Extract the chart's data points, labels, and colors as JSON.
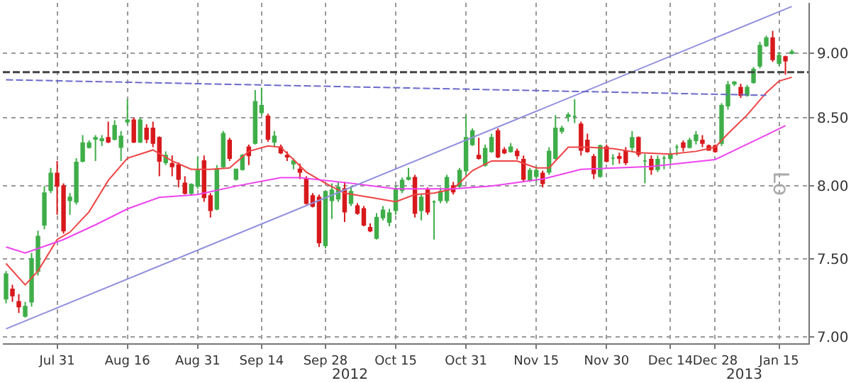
{
  "chart_data": {
    "type": "candlestick",
    "categories": [
      null,
      null,
      null,
      null,
      null,
      null,
      null,
      null,
      "Jul 31",
      null,
      null,
      null,
      null,
      null,
      null,
      null,
      null,
      null,
      null,
      "Aug 16",
      null,
      null,
      null,
      null,
      null,
      null,
      null,
      null,
      null,
      null,
      "Aug 31",
      null,
      null,
      null,
      null,
      null,
      null,
      null,
      null,
      null,
      "Sep 14",
      null,
      null,
      null,
      null,
      null,
      null,
      null,
      null,
      null,
      "Sep 28",
      null,
      null,
      null,
      null,
      null,
      null,
      null,
      null,
      null,
      null,
      "Oct 15",
      null,
      null,
      null,
      null,
      null,
      null,
      null,
      null,
      null,
      null,
      "Oct 31",
      null,
      null,
      null,
      null,
      null,
      null,
      null,
      null,
      null,
      null,
      "Nov 15",
      null,
      null,
      null,
      null,
      null,
      null,
      null,
      null,
      null,
      null,
      "Nov 30",
      null,
      null,
      null,
      null,
      null,
      null,
      null,
      null,
      null,
      "Dec 14",
      null,
      null,
      null,
      null,
      null,
      null,
      "Dec 28",
      null,
      null,
      null,
      null,
      null,
      null,
      null,
      null,
      null,
      "Jan 15",
      null,
      null
    ],
    "ohlc": [
      [
        7.24,
        7.42,
        7.21,
        7.4
      ],
      [
        7.3,
        7.33,
        7.22,
        7.26
      ],
      [
        7.22,
        7.27,
        7.15,
        7.19
      ],
      [
        7.13,
        7.22,
        7.12,
        7.19
      ],
      [
        7.22,
        7.54,
        7.19,
        7.5
      ],
      [
        7.42,
        7.69,
        7.39,
        7.65
      ],
      [
        7.73,
        8.0,
        7.7,
        7.95
      ],
      [
        7.97,
        8.13,
        7.95,
        8.09
      ],
      [
        8.09,
        8.18,
        7.8,
        8.0
      ],
      [
        8.0,
        8.02,
        7.67,
        7.69
      ],
      [
        7.9,
        7.95,
        7.8,
        7.92
      ],
      [
        7.89,
        8.2,
        7.87,
        8.17
      ],
      [
        8.18,
        8.37,
        8.17,
        8.31
      ],
      [
        8.28,
        8.33,
        8.27,
        8.31
      ],
      [
        8.34,
        8.37,
        8.18,
        8.35
      ],
      [
        8.33,
        8.37,
        8.29,
        8.34
      ],
      [
        8.35,
        8.47,
        8.31,
        8.32
      ],
      [
        8.34,
        8.48,
        8.33,
        8.44
      ],
      [
        8.28,
        8.4,
        8.18,
        8.36
      ],
      [
        8.47,
        8.64,
        8.45,
        8.48
      ],
      [
        8.48,
        8.5,
        8.31,
        8.32
      ],
      [
        8.32,
        8.5,
        8.31,
        8.48
      ],
      [
        8.42,
        8.45,
        8.31,
        8.34
      ],
      [
        8.42,
        8.47,
        8.28,
        8.31
      ],
      [
        8.35,
        8.36,
        8.07,
        8.18
      ],
      [
        8.17,
        8.25,
        8.15,
        8.22
      ],
      [
        8.16,
        8.22,
        8.07,
        8.14
      ],
      [
        8.15,
        8.17,
        7.99,
        8.05
      ],
      [
        8.02,
        8.07,
        7.94,
        7.95
      ],
      [
        7.95,
        8.02,
        7.94,
        8.01
      ],
      [
        8.0,
        8.21,
        7.98,
        8.11
      ],
      [
        8.18,
        8.22,
        7.89,
        7.92
      ],
      [
        7.93,
        7.95,
        7.78,
        7.83
      ],
      [
        7.84,
        8.15,
        7.83,
        8.12
      ],
      [
        8.14,
        8.4,
        8.13,
        8.38
      ],
      [
        8.33,
        8.35,
        8.18,
        8.2
      ],
      [
        8.05,
        8.12,
        8.04,
        8.12
      ],
      [
        8.12,
        8.23,
        8.11,
        8.22
      ],
      [
        8.28,
        8.3,
        8.15,
        8.22
      ],
      [
        8.31,
        8.71,
        8.3,
        8.62
      ],
      [
        8.54,
        8.73,
        8.52,
        8.59
      ],
      [
        8.51,
        8.53,
        8.32,
        8.34
      ],
      [
        8.32,
        8.4,
        8.28,
        8.36
      ],
      [
        8.28,
        8.3,
        8.23,
        8.24
      ],
      [
        8.22,
        8.25,
        8.18,
        8.21
      ],
      [
        8.16,
        8.2,
        8.12,
        8.18
      ],
      [
        8.12,
        8.16,
        8.05,
        8.1
      ],
      [
        8.05,
        8.07,
        7.87,
        7.88
      ],
      [
        7.93,
        7.95,
        7.85,
        7.86
      ],
      [
        7.92,
        7.94,
        7.58,
        7.61
      ],
      [
        7.59,
        7.96,
        7.57,
        7.96
      ],
      [
        7.9,
        8.02,
        7.77,
        7.97
      ],
      [
        7.91,
        8.03,
        7.89,
        7.99
      ],
      [
        7.98,
        8.03,
        7.75,
        7.82
      ],
      [
        7.88,
        8.0,
        7.86,
        7.96
      ],
      [
        7.86,
        7.88,
        7.8,
        7.81
      ],
      [
        7.84,
        7.86,
        7.72,
        7.73
      ],
      [
        7.71,
        7.74,
        7.68,
        7.69
      ],
      [
        7.64,
        7.81,
        7.63,
        7.78
      ],
      [
        7.78,
        7.86,
        7.76,
        7.83
      ],
      [
        7.75,
        7.84,
        7.72,
        7.81
      ],
      [
        7.83,
        8.0,
        7.8,
        7.98
      ],
      [
        7.97,
        8.06,
        7.95,
        8.04
      ],
      [
        8.05,
        8.13,
        8.04,
        8.06
      ],
      [
        8.06,
        8.08,
        7.78,
        7.81
      ],
      [
        7.83,
        7.94,
        7.76,
        7.92
      ],
      [
        7.97,
        7.99,
        7.8,
        7.82
      ],
      [
        7.89,
        7.9,
        7.63,
        7.89
      ],
      [
        7.9,
        7.99,
        7.88,
        7.96
      ],
      [
        7.9,
        8.08,
        7.88,
        8.06
      ],
      [
        8.0,
        8.03,
        7.94,
        7.96
      ],
      [
        8.0,
        8.13,
        7.98,
        8.11
      ],
      [
        8.11,
        8.52,
        8.08,
        8.35
      ],
      [
        8.3,
        8.42,
        8.29,
        8.4
      ],
      [
        8.22,
        8.35,
        8.19,
        8.2
      ],
      [
        8.15,
        8.3,
        8.14,
        8.27
      ],
      [
        8.25,
        8.38,
        8.24,
        8.35
      ],
      [
        8.4,
        8.42,
        8.2,
        8.21
      ],
      [
        8.26,
        8.28,
        8.23,
        8.24
      ],
      [
        8.25,
        8.31,
        8.24,
        8.28
      ],
      [
        8.25,
        8.27,
        8.19,
        8.22
      ],
      [
        8.19,
        8.22,
        8.03,
        8.05
      ],
      [
        8.04,
        8.13,
        8.03,
        8.11
      ],
      [
        8.07,
        8.14,
        8.03,
        8.11
      ],
      [
        8.09,
        8.11,
        7.99,
        8.02
      ],
      [
        8.1,
        8.28,
        8.08,
        8.25
      ],
      [
        8.2,
        8.52,
        8.19,
        8.42
      ],
      [
        8.4,
        8.44,
        8.38,
        8.42
      ],
      [
        8.51,
        8.54,
        8.47,
        8.52
      ],
      [
        8.51,
        8.64,
        8.46,
        8.51
      ],
      [
        8.45,
        8.47,
        8.22,
        8.26
      ],
      [
        8.33,
        8.38,
        8.24,
        8.25
      ],
      [
        8.21,
        8.23,
        8.05,
        8.09
      ],
      [
        8.07,
        8.3,
        8.06,
        8.29
      ],
      [
        8.28,
        8.3,
        8.17,
        8.18
      ],
      [
        8.2,
        8.23,
        8.15,
        8.2
      ],
      [
        8.21,
        8.24,
        8.16,
        8.2
      ],
      [
        8.25,
        8.28,
        8.15,
        8.17
      ],
      [
        8.28,
        8.4,
        8.25,
        8.35
      ],
      [
        8.35,
        8.36,
        8.21,
        8.23
      ],
      [
        8.18,
        8.23,
        8.02,
        8.18
      ],
      [
        8.19,
        8.22,
        8.08,
        8.12
      ],
      [
        8.12,
        8.22,
        8.1,
        8.19
      ],
      [
        8.2,
        8.22,
        8.12,
        8.2
      ],
      [
        8.2,
        8.25,
        8.16,
        8.23
      ],
      [
        8.28,
        8.3,
        8.22,
        8.28
      ],
      [
        8.31,
        8.33,
        8.25,
        8.28
      ],
      [
        8.28,
        8.35,
        8.27,
        8.33
      ],
      [
        8.33,
        8.4,
        8.3,
        8.37
      ],
      [
        8.33,
        8.37,
        8.28,
        8.31
      ],
      [
        8.29,
        8.3,
        8.26,
        8.26
      ],
      [
        8.29,
        8.3,
        8.24,
        8.25
      ],
      [
        8.31,
        8.61,
        8.29,
        8.59
      ],
      [
        8.59,
        8.78,
        8.56,
        8.75
      ],
      [
        8.76,
        8.78,
        8.74,
        8.77
      ],
      [
        8.73,
        8.76,
        8.65,
        8.67
      ],
      [
        8.67,
        8.75,
        8.66,
        8.73
      ],
      [
        8.77,
        8.89,
        8.76,
        8.87
      ],
      [
        8.9,
        9.09,
        8.88,
        9.06
      ],
      [
        9.06,
        9.14,
        9.05,
        9.12
      ],
      [
        9.12,
        9.18,
        8.93,
        8.95
      ],
      [
        8.92,
        9.01,
        8.9,
        8.98
      ],
      [
        8.97,
        8.98,
        8.83,
        8.94
      ],
      [
        9.0,
        9.03,
        8.99,
        9.01
      ]
    ],
    "colors": [
      "#3fae49",
      "#d7191c",
      "#d7191c",
      "#3fae49",
      "#3fae49",
      "#3fae49",
      "#3fae49",
      "#3fae49",
      "#d7191c",
      "#d7191c",
      "#3fae49",
      "#3fae49",
      "#3fae49",
      "#3fae49",
      "#3fae49",
      "#3fae49",
      "#d7191c",
      "#3fae49",
      "#3fae49",
      "#3fae49",
      "#d7191c",
      "#3fae49",
      "#d7191c",
      "#d7191c",
      "#d7191c",
      "#3fae49",
      "#d7191c",
      "#d7191c",
      "#d7191c",
      "#3fae49",
      "#3fae49",
      "#d7191c",
      "#d7191c",
      "#3fae49",
      "#3fae49",
      "#d7191c",
      "#3fae49",
      "#3fae49",
      "#d7191c",
      "#3fae49",
      "#3fae49",
      "#d7191c",
      "#3fae49",
      "#d7191c",
      "#d7191c",
      "#3fae49",
      "#d7191c",
      "#d7191c",
      "#d7191c",
      "#d7191c",
      "#3fae49",
      "#3fae49",
      "#3fae49",
      "#d7191c",
      "#3fae49",
      "#d7191c",
      "#d7191c",
      "#d7191c",
      "#3fae49",
      "#3fae49",
      "#3fae49",
      "#3fae49",
      "#3fae49",
      "#3fae49",
      "#d7191c",
      "#3fae49",
      "#d7191c",
      "#3fae49",
      "#3fae49",
      "#3fae49",
      "#d7191c",
      "#3fae49",
      "#3fae49",
      "#3fae49",
      "#d7191c",
      "#3fae49",
      "#3fae49",
      "#d7191c",
      "#d7191c",
      "#3fae49",
      "#d7191c",
      "#d7191c",
      "#3fae49",
      "#3fae49",
      "#d7191c",
      "#3fae49",
      "#3fae49",
      "#3fae49",
      "#3fae49",
      "#3fae49",
      "#d7191c",
      "#d7191c",
      "#d7191c",
      "#3fae49",
      "#d7191c",
      "#3fae49",
      "#d7191c",
      "#d7191c",
      "#3fae49",
      "#d7191c",
      "#3fae49",
      "#d7191c",
      "#3fae49",
      "#3fae49",
      "#3fae49",
      "#3fae49",
      "#d7191c",
      "#3fae49",
      "#3fae49",
      "#d7191c",
      "#d7191c",
      "#d7191c",
      "#3fae49",
      "#3fae49",
      "#3fae49",
      "#d7191c",
      "#3fae49",
      "#3fae49",
      "#3fae49",
      "#3fae49",
      "#d7191c",
      "#3fae49",
      "#d7191c",
      "#3fae49"
    ],
    "series": [
      {
        "type": "line",
        "color": "#ee4444",
        "values": [
          7.47,
          null,
          null,
          7.33,
          null,
          7.42,
          null,
          null,
          7.63,
          null,
          7.68,
          null,
          null,
          7.82,
          null,
          null,
          8.04,
          null,
          null,
          8.2,
          null,
          null,
          null,
          8.26,
          null,
          null,
          8.18,
          null,
          null,
          8.12,
          null,
          null,
          8.12,
          null,
          null,
          8.13,
          null,
          null,
          8.25,
          null,
          null,
          8.29,
          null,
          8.28,
          null,
          null,
          null,
          8.1,
          null,
          null,
          8.02,
          null,
          null,
          7.95,
          null,
          null,
          null,
          7.92,
          null,
          null,
          null,
          7.89,
          null,
          null,
          7.94,
          null,
          null,
          7.95,
          null,
          null,
          7.98,
          null,
          null,
          8.11,
          null,
          null,
          8.18,
          null,
          null,
          null,
          8.18,
          null,
          null,
          8.13,
          null,
          8.13,
          null,
          null,
          8.28,
          null,
          null,
          8.28,
          null,
          null,
          null,
          8.27,
          null,
          null,
          null,
          8.24,
          null,
          null,
          null,
          null,
          8.23,
          null,
          null,
          null,
          8.25,
          null,
          null,
          8.28,
          null,
          8.38,
          null,
          null,
          8.52,
          null,
          null,
          8.69,
          null,
          8.78,
          null,
          8.81
        ]
      },
      {
        "type": "line",
        "color": "#ee44ee",
        "values": [
          7.58,
          null,
          null,
          7.54,
          null,
          null,
          null,
          null,
          null,
          7.63,
          null,
          null,
          null,
          null,
          7.73,
          null,
          null,
          null,
          null,
          7.84,
          null,
          null,
          null,
          null,
          7.92,
          null,
          null,
          null,
          null,
          null,
          7.94,
          null,
          null,
          null,
          null,
          null,
          8.0,
          null,
          null,
          null,
          null,
          null,
          null,
          8.06,
          null,
          null,
          8.06,
          null,
          null,
          null,
          null,
          null,
          null,
          null,
          8.02,
          null,
          null,
          null,
          null,
          null,
          null,
          7.98,
          null,
          null,
          null,
          null,
          null,
          null,
          null,
          null,
          7.98,
          null,
          null,
          null,
          null,
          null,
          8.0,
          null,
          null,
          null,
          null,
          null,
          null,
          null,
          8.05,
          null,
          null,
          null,
          null,
          null,
          8.12,
          null,
          null,
          null,
          null,
          null,
          null,
          null,
          null,
          null,
          null,
          8.14,
          null,
          null,
          null,
          null,
          null,
          null,
          null,
          null,
          null,
          8.19,
          null,
          null,
          null,
          8.28,
          null,
          null,
          null,
          8.37,
          null,
          null,
          8.44,
          null
        ]
      },
      {
        "type": "line",
        "color": "#9090dd",
        "values": [
          7.05,
          null,
          null,
          null,
          null,
          null,
          null,
          null,
          null,
          null,
          null,
          null,
          null,
          null,
          null,
          null,
          null,
          null,
          null,
          null,
          null,
          null,
          null,
          null,
          null,
          null,
          null,
          null,
          null,
          null,
          null,
          null,
          null,
          null,
          null,
          null,
          null,
          null,
          null,
          null,
          null,
          null,
          null,
          null,
          null,
          null,
          null,
          null,
          null,
          null,
          null,
          null,
          null,
          null,
          null,
          null,
          null,
          null,
          null,
          null,
          null,
          null,
          null,
          null,
          null,
          null,
          null,
          null,
          null,
          null,
          null,
          null,
          null,
          null,
          null,
          null,
          null,
          null,
          null,
          null,
          null,
          null,
          null,
          null,
          null,
          null,
          null,
          null,
          null,
          null,
          null,
          null,
          null,
          null,
          null,
          null,
          null,
          null,
          null,
          null,
          null,
          null,
          null,
          null,
          null,
          null,
          null,
          null,
          null,
          null,
          null,
          null,
          null,
          null,
          null,
          null,
          null,
          null,
          null,
          null,
          null,
          null,
          null,
          9.38
        ]
      },
      {
        "type": "line",
        "color": "#6a6acc",
        "line_style": "dashed",
        "values": [
          8.79,
          null,
          null,
          null,
          null,
          null,
          null,
          null,
          null,
          null,
          null,
          null,
          null,
          null,
          null,
          null,
          null,
          null,
          null,
          null,
          null,
          null,
          null,
          null,
          null,
          null,
          null,
          null,
          null,
          null,
          null,
          null,
          null,
          null,
          null,
          null,
          null,
          null,
          null,
          null,
          null,
          null,
          null,
          null,
          null,
          null,
          null,
          null,
          null,
          null,
          null,
          null,
          null,
          null,
          null,
          null,
          null,
          null,
          null,
          null,
          null,
          null,
          null,
          null,
          null,
          null,
          null,
          null,
          null,
          null,
          null,
          null,
          null,
          null,
          null,
          null,
          null,
          null,
          null,
          null,
          null,
          null,
          null,
          null,
          null,
          null,
          null,
          null,
          null,
          null,
          null,
          null,
          null,
          null,
          null,
          null,
          null,
          null,
          null,
          null,
          null,
          null,
          null,
          null,
          null,
          null,
          null,
          null,
          null,
          null,
          null,
          null,
          null,
          null,
          null,
          null,
          null,
          null,
          null,
          8.67,
          null,
          null,
          null,
          null
        ]
      }
    ],
    "ref_lines": [
      {
        "axis": "y",
        "value": 8.85,
        "color": "#444444",
        "line_style": "dashed"
      }
    ],
    "ylim": [
      6.96,
      9.41
    ],
    "yticks": [
      {
        "value": 7,
        "label": "7.00"
      },
      {
        "value": 7.5,
        "label": "7.50"
      },
      {
        "value": 8,
        "label": "8.00"
      },
      {
        "value": 8.5,
        "label": "8.50"
      },
      {
        "value": 9,
        "label": "9.00"
      }
    ],
    "log": true,
    "grid": true,
    "annotations": [
      "2012",
      "2013",
      "Lo"
    ]
  }
}
